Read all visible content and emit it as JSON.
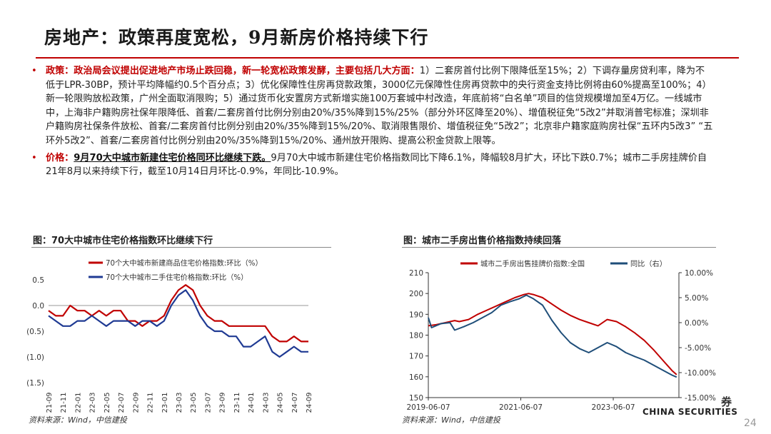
{
  "title": "房地产：政策再度宽松，9月新房价格持续下行",
  "bullets": {
    "policy_lead": "政策：政治局会议提出促进地产市场止跌回稳，新一轮宽松政策发酵，主要包括几大方面：",
    "policy_text": "1）二套房首付比例下限降低至15%；2）下调存量房贷利率，降为不低于LPR-30BP，预计平均降幅约0.5个百分点；3）优化保障性住房再贷款政策，3000亿元保障性住房再贷款中的央行资金支持比例将由60%提高至100%；4）新一轮限购放松政策，广州全面取消限购；5）通过货币化安置房方式新增实施100万套城中村改造，年底前将“白名单”项目的信贷规模增加至4万亿。一线城市中，上海非户籍购房社保年限降低、首套/二套房首付比例分别由20%/35%降到15%/25%（部分外环区降至20%）、增值税征免“5改2”并取消普宅标准；深圳非户籍购房社保条件放松、首套/二套房首付比例分别由20%/35%降到15%/20%、取消限售限价、增值税征免“5改2”；北京非户籍家庭购房社保“五环内5改3” “五环外5改2”、首套/二套房首付比例分别由20%/35%降到15%/20%、通州放开限购、提高公积金贷款上限等。",
    "price_lead": "价格：",
    "price_highlight": "9月70大中城市新建住宅价格同环比继续下跌。",
    "price_text": "9月70大中城市新建住宅价格指数同比下降6.1%，降幅较8月扩大，环比下跌0.7%；城市二手房挂牌价自21年8月以来持续下行，截至10月14日月环比-0.9%，年同比-10.9%。"
  },
  "figure_left": {
    "title": "图：70大中城市住宅价格指数环比继续下行",
    "source": "资料来源：Wind，中信建投"
  },
  "figure_right": {
    "title": "图：城市二手房出售价格指数持续回落",
    "source": "资料来源：Wind，中信建投"
  },
  "logo_text": "CHINA SECURITIES",
  "logo_mark": "券",
  "page_number": "24",
  "chart_data": [
    {
      "type": "line",
      "categories": [
        "21-09",
        "21-10",
        "21-11",
        "21-12",
        "22-01",
        "22-02",
        "22-03",
        "22-04",
        "22-05",
        "22-06",
        "22-07",
        "22-08",
        "22-09",
        "22-10",
        "22-11",
        "22-12",
        "23-01",
        "23-02",
        "23-03",
        "23-04",
        "23-05",
        "23-06",
        "23-07",
        "23-08",
        "23-09",
        "23-10",
        "23-11",
        "23-12",
        "24-01",
        "24-02",
        "24-03",
        "24-04",
        "24-05",
        "24-06",
        "24-07",
        "24-08",
        "24-09"
      ],
      "x_tick_labels": [
        "21-09",
        "21-11",
        "22-01",
        "22-03",
        "22-05",
        "22-07",
        "22-09",
        "22-11",
        "23-01",
        "23-03",
        "23-05",
        "23-07",
        "23-09",
        "23-11",
        "24-01",
        "24-03",
        "24-05",
        "24-07",
        "24-09"
      ],
      "y_tick_labels": [
        "0.5",
        "0.0",
        "(0.5)",
        "(1.0)",
        "(1.5)"
      ],
      "ylim": [
        -1.5,
        0.5
      ],
      "colors": [
        "#c00000",
        "#1f3a93"
      ],
      "series": [
        {
          "name": "70个大中城市新建商品住宅价格指数:环比（%）",
          "values": [
            -0.1,
            -0.2,
            -0.2,
            0.0,
            -0.1,
            -0.1,
            -0.2,
            -0.1,
            -0.2,
            -0.1,
            -0.1,
            -0.3,
            -0.3,
            -0.4,
            -0.3,
            -0.3,
            -0.2,
            0.1,
            0.3,
            0.4,
            0.3,
            0.0,
            -0.2,
            -0.3,
            -0.3,
            -0.4,
            -0.4,
            -0.4,
            -0.4,
            -0.4,
            -0.4,
            -0.6,
            -0.7,
            -0.7,
            -0.6,
            -0.7,
            -0.7
          ]
        },
        {
          "name": "70个大中城市二手住宅价格指数:环比（%）",
          "values": [
            -0.2,
            -0.3,
            -0.4,
            -0.4,
            -0.3,
            -0.3,
            -0.2,
            -0.3,
            -0.4,
            -0.3,
            -0.3,
            -0.3,
            -0.4,
            -0.3,
            -0.3,
            -0.4,
            -0.3,
            0.0,
            0.2,
            0.3,
            0.1,
            -0.2,
            -0.4,
            -0.5,
            -0.5,
            -0.6,
            -0.6,
            -0.8,
            -0.8,
            -0.7,
            -0.6,
            -0.9,
            -1.0,
            -0.9,
            -0.8,
            -0.9,
            -0.9
          ]
        }
      ]
    },
    {
      "type": "line",
      "x_tick_labels": [
        "2019-06-07",
        "2021-06-07",
        "2023-06-07"
      ],
      "x_tick_positions": [
        2019.43,
        2021.43,
        2023.43
      ],
      "xlim": [
        2019.43,
        2024.85
      ],
      "y_left_ticks": [
        "210",
        "200",
        "190",
        "180",
        "170",
        "160",
        "150"
      ],
      "y_right_ticks": [
        "10.00%",
        "5.00%",
        "0.00%",
        "-5.00%",
        "-10.00%",
        "-15.00%"
      ],
      "ylim_left": [
        150,
        210
      ],
      "ylim_right": [
        -15,
        10
      ],
      "colors": [
        "#c00000",
        "#1f4e79"
      ],
      "series": [
        {
          "name": "城市二手房出售挂牌价指数:全国",
          "axis": "left",
          "x": [
            2019.43,
            2019.6,
            2019.8,
            2020.0,
            2020.1,
            2020.3,
            2020.5,
            2020.7,
            2020.9,
            2021.1,
            2021.3,
            2021.5,
            2021.6,
            2021.7,
            2021.9,
            2022.1,
            2022.3,
            2022.5,
            2022.7,
            2022.9,
            2023.1,
            2023.3,
            2023.5,
            2023.7,
            2023.9,
            2024.1,
            2024.3,
            2024.5,
            2024.7,
            2024.8
          ],
          "y": [
            184.5,
            185,
            186,
            187,
            186.5,
            187.5,
            190,
            192,
            194,
            196,
            198,
            199.5,
            200,
            199.5,
            198,
            195,
            192,
            189.5,
            187.5,
            186,
            184.5,
            187.5,
            186.5,
            184,
            181,
            177.5,
            173,
            168,
            163,
            161
          ]
        },
        {
          "name": "同比（右）",
          "axis": "right",
          "x": [
            2019.43,
            2019.5,
            2019.7,
            2019.9,
            2020.0,
            2020.2,
            2020.4,
            2020.6,
            2020.8,
            2021.0,
            2021.2,
            2021.4,
            2021.55,
            2021.7,
            2021.9,
            2022.1,
            2022.3,
            2022.5,
            2022.7,
            2022.9,
            2023.1,
            2023.3,
            2023.5,
            2023.7,
            2023.9,
            2024.1,
            2024.3,
            2024.5,
            2024.7,
            2024.8
          ],
          "y": [
            1.0,
            -1.0,
            -0.2,
            0.0,
            -1.5,
            -0.8,
            0.0,
            1.0,
            2.0,
            3.5,
            4.2,
            4.8,
            5.5,
            4.8,
            3.5,
            0.5,
            -2.0,
            -4.0,
            -5.2,
            -6.0,
            -5.0,
            -4.0,
            -4.8,
            -6.0,
            -6.8,
            -7.5,
            -8.5,
            -9.5,
            -10.5,
            -10.9
          ]
        }
      ]
    }
  ]
}
